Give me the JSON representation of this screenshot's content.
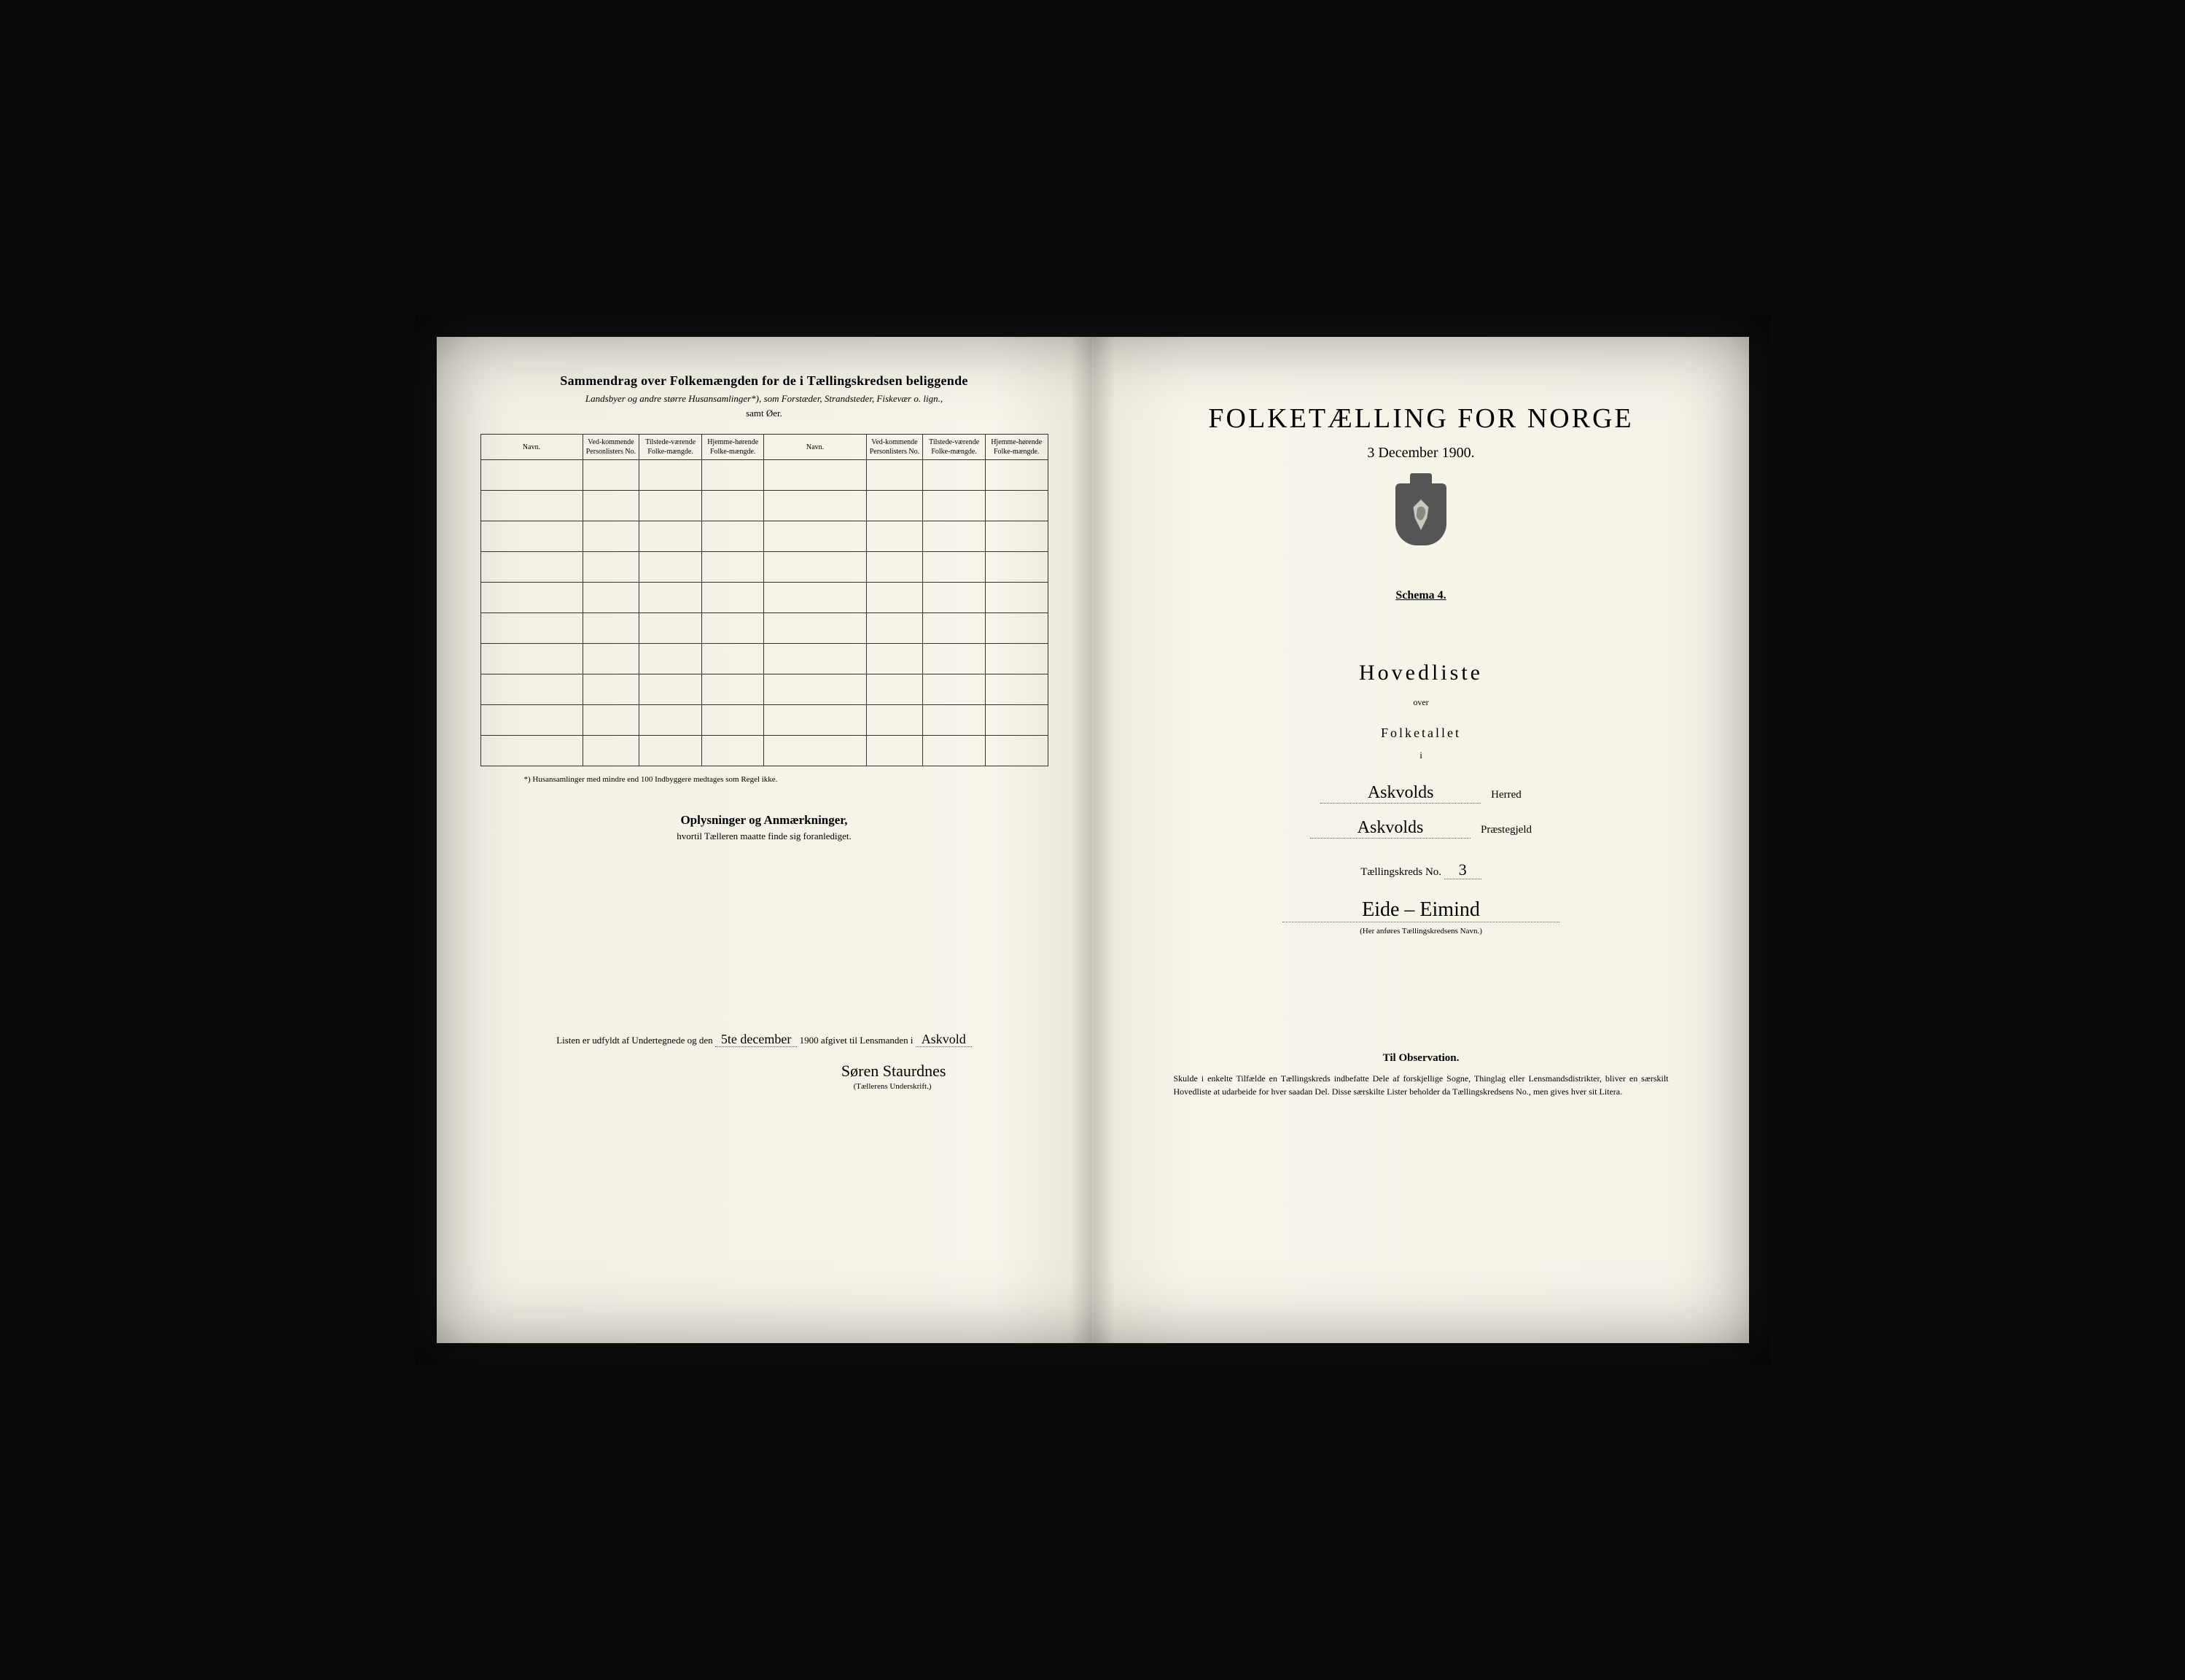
{
  "left": {
    "summary_title": "Sammendrag over Folkemængden for de i Tællingskredsen beliggende",
    "summary_sub": "Landsbyer og andre større Husansamlinger*), som Forstæder, Strandsteder, Fiskevær o. lign.,",
    "summary_sub2": "samt Øer.",
    "columns": {
      "navn": "Navn.",
      "personlister": "Ved-kommende Personlisters No.",
      "tilstede": "Tilstede-værende Folke-mængde.",
      "hjemme": "Hjemme-hørende Folke-mængde."
    },
    "row_count": 10,
    "footnote": "*) Husansamlinger med mindre end 100 Indbyggere medtages som Regel ikke.",
    "oplysninger_title": "Oplysninger og Anmærkninger,",
    "oplysninger_sub": "hvortil Tælleren maatte finde sig foranlediget.",
    "sign_prefix": "Listen er udfyldt af Undertegnede og den",
    "sign_date": "5te december",
    "sign_year": "1900",
    "sign_mid": "afgivet til Lensmanden i",
    "sign_place": "Askvold",
    "sign_name": "Søren Staurdnes",
    "sign_caption": "(Tællerens Underskrift.)"
  },
  "right": {
    "main_title": "FOLKETÆLLING FOR NORGE",
    "main_date": "3 December 1900.",
    "schema": "Schema 4.",
    "hovedliste": "Hovedliste",
    "over": "over",
    "folketallet": "Folketallet",
    "i": "i",
    "herred_value": "Askvolds",
    "herred_label": "Herred",
    "praestegjeld_value": "Askvolds",
    "praestegjeld_label": "Præstegjeld",
    "kreds_label": "Tællingskreds No.",
    "kreds_no": "3",
    "kreds_name": "Eide – Eimind",
    "kreds_caption": "(Her anføres Tællingskredsens Navn.)",
    "obs_title": "Til Observation.",
    "obs_text": "Skulde i enkelte Tilfælde en Tællingskreds indbefatte Dele af forskjellige Sogne, Thinglag eller Lensmandsdistrikter, bliver en særskilt Hovedliste at udarbeide for hver saadan Del. Disse særskilte Lister beholder da Tællingskredsens No., men gives hver sit Litera."
  },
  "colors": {
    "paper": "#f7f4ea",
    "ink": "#1a1a1a",
    "border": "#333333",
    "handwriting": "#2a2a2a"
  }
}
